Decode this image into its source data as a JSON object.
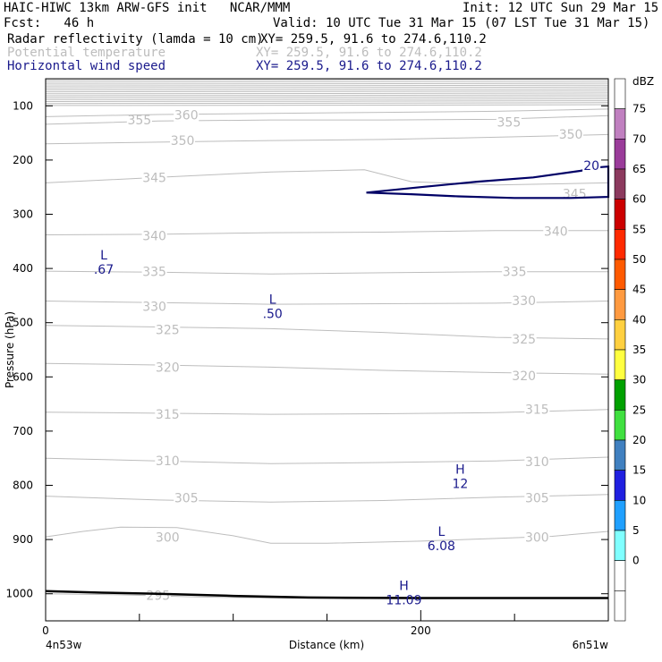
{
  "header": {
    "line1_left": "HAIC-HIWC 13km ARW-GFS init   NCAR/MMM",
    "line1_right": "Init: 12 UTC Sun 29 Mar 15",
    "line2_left": "Fcst:   46 h",
    "line2_right": "Valid: 10 UTC Tue 31 Mar 15 (07 LST Tue 31 Mar 15)",
    "fields": [
      {
        "name": "Radar reflectivity (lamda = 10 cm)",
        "xy": "XY= 259.5, 91.6 to 274.6,110.2",
        "color": "#000000"
      },
      {
        "name": "Potential temperature",
        "xy": "XY= 259.5, 91.6 to 274.6,110.2",
        "color": "#bdbdbd"
      },
      {
        "name": "Horizontal wind speed",
        "xy": "XY= 259.5, 91.6 to 274.6,110.2",
        "color": "#1a1a8c"
      }
    ]
  },
  "chart_data": {
    "type": "line",
    "xlabel": "Distance (km)",
    "ylabel": "Pressure (hPa)",
    "xlim": [
      0,
      300
    ],
    "ylim": [
      1050,
      50
    ],
    "x_ticks": [
      {
        "value": 0,
        "label": "0"
      },
      {
        "value": 200,
        "label": "200"
      }
    ],
    "x_minor_ticks": [
      50,
      100,
      150,
      250,
      300
    ],
    "y_ticks": [
      100,
      200,
      300,
      400,
      500,
      600,
      700,
      800,
      900,
      1000
    ],
    "x_endpoints": {
      "left": "4n53w",
      "right": "6n51w"
    },
    "theta_contours": [
      {
        "label": "295",
        "level": 295,
        "points": [
          [
            0,
            1000
          ],
          [
            40,
            1002
          ],
          [
            80,
            1006
          ],
          [
            120,
            1008
          ],
          [
            160,
            1009
          ],
          [
            200,
            1009
          ],
          [
            260,
            1008
          ],
          [
            300,
            1008
          ]
        ],
        "label_at": [
          60,
          1003
        ]
      },
      {
        "label": "300",
        "level": 300,
        "points": [
          [
            0,
            895
          ],
          [
            20,
            885
          ],
          [
            40,
            877
          ],
          [
            70,
            878
          ],
          [
            100,
            893
          ],
          [
            120,
            907
          ],
          [
            150,
            907
          ],
          [
            200,
            903
          ],
          [
            240,
            898
          ],
          [
            270,
            894
          ],
          [
            300,
            885
          ]
        ],
        "label_at": [
          65,
          896
        ],
        "label2_at": [
          262,
          896
        ]
      },
      {
        "label": "305",
        "level": 305,
        "points": [
          [
            0,
            820
          ],
          [
            60,
            827
          ],
          [
            120,
            831
          ],
          [
            180,
            828
          ],
          [
            240,
            822
          ],
          [
            300,
            817
          ]
        ],
        "label_at": [
          75,
          823
        ],
        "label2_at": [
          262,
          823
        ]
      },
      {
        "label": "310",
        "level": 310,
        "points": [
          [
            0,
            750
          ],
          [
            60,
            755
          ],
          [
            120,
            760
          ],
          [
            180,
            758
          ],
          [
            240,
            755
          ],
          [
            300,
            748
          ]
        ],
        "label_at": [
          65,
          755
        ],
        "label2_at": [
          262,
          756
        ]
      },
      {
        "label": "315",
        "level": 315,
        "points": [
          [
            0,
            665
          ],
          [
            60,
            667
          ],
          [
            120,
            669
          ],
          [
            180,
            668
          ],
          [
            240,
            666
          ],
          [
            300,
            660
          ]
        ],
        "label_at": [
          65,
          669
        ],
        "label2_at": [
          262,
          660
        ]
      },
      {
        "label": "320",
        "level": 320,
        "points": [
          [
            0,
            575
          ],
          [
            60,
            578
          ],
          [
            120,
            582
          ],
          [
            180,
            588
          ],
          [
            240,
            592
          ],
          [
            300,
            595
          ]
        ],
        "label_at": [
          65,
          582
        ],
        "label2_at": [
          255,
          598
        ]
      },
      {
        "label": "325",
        "level": 325,
        "points": [
          [
            0,
            505
          ],
          [
            60,
            508
          ],
          [
            120,
            511
          ],
          [
            180,
            518
          ],
          [
            240,
            527
          ],
          [
            300,
            530
          ]
        ],
        "label_at": [
          65,
          513
        ],
        "label2_at": [
          255,
          530
        ]
      },
      {
        "label": "330",
        "level": 330,
        "points": [
          [
            0,
            460
          ],
          [
            60,
            463
          ],
          [
            120,
            466
          ],
          [
            180,
            465
          ],
          [
            240,
            464
          ],
          [
            300,
            460
          ]
        ],
        "label_at": [
          58,
          470
        ],
        "label2_at": [
          255,
          459
        ]
      },
      {
        "label": "335",
        "level": 335,
        "points": [
          [
            0,
            405
          ],
          [
            60,
            407
          ],
          [
            120,
            410
          ],
          [
            180,
            408
          ],
          [
            240,
            406
          ],
          [
            300,
            406
          ]
        ],
        "label_at": [
          58,
          406
        ],
        "label2_at": [
          250,
          406
        ]
      },
      {
        "label": "340",
        "level": 340,
        "points": [
          [
            0,
            338
          ],
          [
            60,
            337
          ],
          [
            120,
            334
          ],
          [
            180,
            333
          ],
          [
            240,
            330
          ],
          [
            300,
            330
          ]
        ],
        "label_at": [
          58,
          340
        ],
        "label2_at": [
          272,
          331
        ]
      },
      {
        "label": "345",
        "level": 345,
        "points": [
          [
            0,
            242
          ],
          [
            60,
            232
          ],
          [
            120,
            222
          ],
          [
            170,
            218
          ],
          [
            195,
            240
          ],
          [
            240,
            246
          ],
          [
            300,
            242
          ]
        ],
        "label_at": [
          58,
          232
        ],
        "label2_at": [
          282,
          262
        ]
      },
      {
        "label": "350",
        "level": 350,
        "points": [
          [
            0,
            170
          ],
          [
            60,
            167
          ],
          [
            120,
            164
          ],
          [
            180,
            162
          ],
          [
            240,
            158
          ],
          [
            300,
            153
          ]
        ],
        "label_at": [
          73,
          164
        ],
        "label2_at": [
          280,
          152
        ]
      },
      {
        "label": "355",
        "level": 355,
        "points": [
          [
            0,
            134
          ],
          [
            60,
            128
          ],
          [
            120,
            126
          ],
          [
            180,
            126
          ],
          [
            240,
            125
          ],
          [
            300,
            118
          ]
        ],
        "label_at": [
          50,
          126
        ],
        "label2_at": [
          247,
          130
        ]
      },
      {
        "label": "360",
        "level": 360,
        "points": [
          [
            0,
            120
          ],
          [
            60,
            116
          ],
          [
            120,
            114
          ],
          [
            180,
            112
          ],
          [
            240,
            110
          ],
          [
            300,
            106
          ]
        ],
        "label_at": [
          75,
          117
        ]
      }
    ],
    "wind_contours": [
      {
        "label": "20",
        "level": 20,
        "points": [
          [
            171,
            260
          ],
          [
            200,
            250
          ],
          [
            230,
            240
          ],
          [
            260,
            232
          ],
          [
            285,
            220
          ],
          [
            296,
            213
          ],
          [
            300,
            212
          ]
        ],
        "return": [
          [
            300,
            268
          ],
          [
            280,
            270
          ],
          [
            250,
            270
          ],
          [
            220,
            267
          ],
          [
            195,
            263
          ],
          [
            171,
            260
          ]
        ],
        "label_at": [
          291,
          210
        ]
      }
    ],
    "wind_extrema": [
      {
        "type": "L",
        "value": ".67",
        "x": 31,
        "y": 390
      },
      {
        "type": "L",
        "value": ".50",
        "x": 121,
        "y": 472
      },
      {
        "type": "H",
        "value": "12",
        "x": 221,
        "y": 785
      },
      {
        "type": "L",
        "value": "6.08",
        "x": 211,
        "y": 900
      },
      {
        "type": "H",
        "value": "11.09",
        "x": 191,
        "y": 1000
      }
    ],
    "terrain": [
      [
        0,
        995
      ],
      [
        30,
        998
      ],
      [
        60,
        1000
      ],
      [
        100,
        1004
      ],
      [
        140,
        1007
      ],
      [
        200,
        1008
      ],
      [
        260,
        1008
      ],
      [
        300,
        1008
      ]
    ],
    "colorbar": {
      "units": "dBZ",
      "labels": [
        "75",
        "70",
        "65",
        "60",
        "55",
        "50",
        "45",
        "40",
        "35",
        "30",
        "25",
        "20",
        "15",
        "10",
        "5",
        "0"
      ],
      "colors": [
        "#ffffff",
        "#c080c0",
        "#9a3c9a",
        "#8c3a5e",
        "#cc0000",
        "#ff2a00",
        "#ff5a00",
        "#ff9a40",
        "#ffd040",
        "#ffff40",
        "#00a000",
        "#40e040",
        "#4080c0",
        "#2020e0",
        "#20a0ff",
        "#80ffff",
        "#ffffff",
        "#ffffff"
      ]
    }
  }
}
